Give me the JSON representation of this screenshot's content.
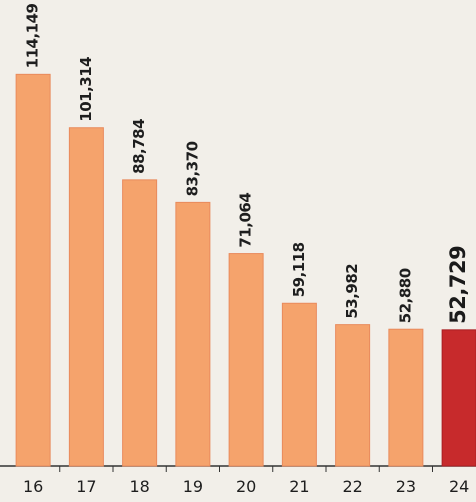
{
  "chart_data": {
    "type": "bar",
    "categories": [
      "16",
      "17",
      "18",
      "19",
      "20",
      "21",
      "22",
      "23",
      "24"
    ],
    "values": [
      114149,
      101314,
      88784,
      83370,
      71064,
      59118,
      53982,
      52880,
      52729
    ],
    "value_labels": [
      "114,149",
      "101,314",
      "88,784",
      "83,370",
      "71,064",
      "59,118",
      "53,982",
      "52,880",
      "52,729"
    ],
    "colors": [
      "#f5a36c",
      "#f5a36c",
      "#f5a36c",
      "#f5a36c",
      "#f5a36c",
      "#f5a36c",
      "#f5a36c",
      "#f5a36c",
      "#c72a2c"
    ],
    "ylim": [
      20000,
      120000
    ]
  }
}
